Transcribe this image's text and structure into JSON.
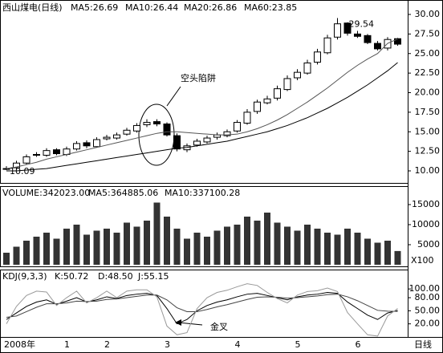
{
  "chart_data": [
    {
      "type": "candlestick",
      "header": [
        "西山煤电(日线)",
        "MA5:26.69",
        "MA10:26.44",
        "MA20:26.86",
        "MA60:23.85"
      ],
      "annotations": [
        "空头陷阱"
      ],
      "open": [
        10.2,
        10.4,
        11.0,
        12.1,
        12.0,
        12.7,
        12.1,
        12.8,
        13.6,
        13.1,
        14.1,
        14.2,
        14.7,
        15.1,
        15.9,
        16.3,
        16.0,
        14.5,
        12.7,
        13.3,
        13.7,
        14.3,
        14.5,
        15.1,
        16.1,
        17.6,
        18.7,
        19.3,
        20.4,
        21.9,
        22.5,
        23.9,
        25.1,
        27.1,
        28.9,
        27.5,
        27.3,
        26.3,
        25.7,
        26.9
      ],
      "high": [
        10.6,
        11.3,
        12.1,
        12.4,
        12.9,
        12.9,
        13.1,
        13.8,
        13.9,
        14.3,
        14.6,
        14.9,
        15.5,
        16.1,
        16.6,
        16.6,
        16.2,
        14.8,
        13.5,
        14.1,
        14.5,
        14.9,
        15.3,
        16.5,
        17.9,
        19.1,
        19.6,
        20.9,
        22.2,
        23.0,
        24.2,
        25.6,
        27.4,
        29.54,
        29.0,
        27.9,
        27.5,
        26.6,
        27.1,
        27.0
      ],
      "low": [
        10.09,
        10.2,
        10.8,
        11.8,
        11.8,
        12.0,
        11.9,
        12.6,
        12.9,
        13.0,
        13.9,
        14.0,
        14.5,
        14.9,
        15.6,
        15.7,
        14.4,
        12.5,
        12.4,
        13.1,
        13.5,
        14.0,
        14.3,
        14.9,
        15.9,
        17.3,
        18.5,
        19.0,
        20.2,
        21.6,
        22.3,
        23.6,
        24.9,
        26.8,
        27.3,
        27.0,
        26.2,
        25.4,
        25.4,
        26.0
      ],
      "close": [
        10.3,
        11.0,
        11.8,
        12.0,
        12.6,
        12.2,
        12.8,
        13.5,
        13.2,
        14.0,
        14.3,
        14.6,
        15.2,
        15.8,
        16.2,
        16.0,
        14.6,
        12.8,
        13.2,
        13.8,
        14.2,
        14.6,
        15.0,
        16.2,
        17.5,
        18.8,
        19.2,
        20.5,
        21.8,
        22.6,
        23.8,
        25.2,
        27.0,
        28.8,
        27.6,
        27.2,
        26.4,
        25.6,
        26.8,
        26.2
      ],
      "series": [
        {
          "color": "#555555",
          "values": [
            10.3,
            10.5,
            10.8,
            11.1,
            11.5,
            11.8,
            12.1,
            12.4,
            12.7,
            13.0,
            13.3,
            13.6,
            13.9,
            14.2,
            14.5,
            14.8,
            15.0,
            15.0,
            14.9,
            14.8,
            14.7,
            14.6,
            14.6,
            14.7,
            15.0,
            15.4,
            15.9,
            16.5,
            17.2,
            18.0,
            18.8,
            19.7,
            20.6,
            21.6,
            22.6,
            23.5,
            24.3,
            25.0,
            26.3,
            26.86
          ]
        },
        {
          "color": "#000000",
          "values": [
            10.0,
            10.0,
            10.1,
            10.2,
            10.3,
            10.5,
            10.7,
            10.9,
            11.1,
            11.3,
            11.5,
            11.7,
            11.9,
            12.1,
            12.3,
            12.5,
            12.7,
            12.9,
            13.0,
            13.2,
            13.4,
            13.6,
            13.8,
            14.1,
            14.4,
            14.7,
            15.0,
            15.4,
            15.8,
            16.3,
            16.8,
            17.4,
            18.0,
            18.7,
            19.4,
            20.2,
            21.0,
            21.9,
            22.8,
            23.85
          ]
        }
      ],
      "ylim": [
        9,
        30.8
      ],
      "yticks": [
        {
          "value": 10,
          "label": "10.00"
        },
        {
          "value": 12.5,
          "label": "12.50"
        },
        {
          "value": 15,
          "label": "15.00"
        },
        {
          "value": 17.5,
          "label": "17.50"
        },
        {
          "value": 20,
          "label": "20.00"
        },
        {
          "value": 22.5,
          "label": "22.50"
        },
        {
          "value": 25,
          "label": "25.00"
        },
        {
          "value": 27.5,
          "label": "27.50"
        },
        {
          "value": 30,
          "label": "30.00"
        }
      ]
    },
    {
      "type": "bar",
      "header": [
        "VOLUME:342023.00",
        "MA5:364885.06",
        "MA10:337100.28"
      ],
      "unit_label": "X100",
      "color": "#333333",
      "values": [
        3000,
        4500,
        6000,
        7000,
        8000,
        6500,
        9000,
        10000,
        7500,
        8500,
        9000,
        8000,
        10500,
        9500,
        11000,
        15500,
        12000,
        9000,
        6500,
        8000,
        7000,
        8500,
        9500,
        10000,
        12000,
        11000,
        13000,
        10500,
        9500,
        8500,
        10000,
        9000,
        8000,
        7500,
        9000,
        8000,
        6500,
        5500,
        6000,
        3420
      ],
      "ylim": [
        0,
        16400
      ],
      "yticks": [
        5000,
        10000,
        15000
      ]
    },
    {
      "type": "line",
      "header": [
        "KDJ(9,3,3)",
        "K:50.72",
        "D:48.50",
        "J:55.15"
      ],
      "annotations": [
        "金叉"
      ],
      "period_label": "日线",
      "categories": [
        "2008年",
        null,
        null,
        null,
        null,
        null,
        "1",
        null,
        null,
        null,
        "2",
        null,
        null,
        null,
        null,
        null,
        "3",
        null,
        null,
        null,
        null,
        null,
        null,
        "4",
        null,
        null,
        null,
        null,
        null,
        "5",
        null,
        null,
        null,
        null,
        null,
        "6",
        null,
        null,
        null,
        null
      ],
      "series": [
        {
          "color": "#000000",
          "values": [
            30,
            45,
            60,
            70,
            75,
            65,
            72,
            80,
            70,
            75,
            82,
            78,
            85,
            88,
            90,
            85,
            55,
            20,
            30,
            50,
            62,
            70,
            75,
            82,
            88,
            90,
            85,
            80,
            75,
            82,
            86,
            88,
            92,
            90,
            70,
            55,
            40,
            30,
            45,
            50.72
          ]
        },
        {
          "color": "#444444",
          "values": [
            35,
            38,
            48,
            58,
            66,
            66,
            68,
            72,
            71,
            72,
            76,
            77,
            80,
            83,
            86,
            86,
            75,
            57,
            48,
            48,
            53,
            59,
            64,
            70,
            76,
            81,
            82,
            81,
            79,
            80,
            82,
            84,
            87,
            88,
            82,
            73,
            62,
            51,
            49,
            48.5
          ]
        },
        {
          "color": "#999999",
          "values": [
            20,
            60,
            85,
            95,
            93,
            62,
            80,
            95,
            68,
            80,
            95,
            80,
            95,
            98,
            98,
            82,
            15,
            -5,
            0,
            55,
            80,
            92,
            97,
            105,
            112,
            108,
            92,
            78,
            68,
            86,
            94,
            96,
            102,
            94,
            46,
            20,
            -5,
            -8,
            38,
            55.15
          ]
        }
      ],
      "ylim": [
        -10,
        115
      ],
      "yticks": [
        {
          "value": 20,
          "label": "20.00"
        },
        {
          "value": 50,
          "label": "50.00"
        },
        {
          "value": 80,
          "label": "80.00"
        },
        {
          "value": 100,
          "label": "100.00"
        }
      ]
    }
  ]
}
